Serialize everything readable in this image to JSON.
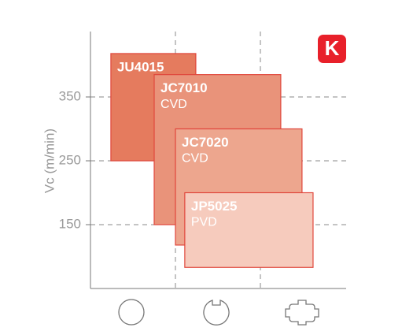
{
  "chart_data": {
    "type": "range-box",
    "ylabel": "Vc (m/min)",
    "badge": "K",
    "ylim": [
      50,
      450
    ],
    "yticks": [
      150,
      250,
      350
    ],
    "xlim": [
      0,
      3
    ],
    "xticks": [
      1,
      2
    ],
    "grid": true,
    "series": [
      {
        "name": "JU4015",
        "coating": null,
        "color": "#e57b5e",
        "x": [
          0.24,
          1.24
        ],
        "low": 250,
        "high": 418
      },
      {
        "name": "JC7010",
        "coating": "CVD",
        "color": "#e9937a",
        "x": [
          0.75,
          2.24
        ],
        "low": 150,
        "high": 385
      },
      {
        "name": "JC7020",
        "coating": "CVD",
        "color": "#eda68e",
        "x": [
          1.0,
          2.49
        ],
        "low": 118,
        "high": 300
      },
      {
        "name": "JP5025",
        "coating": "PVD",
        "color": "#f6cbbd",
        "x": [
          1.11,
          2.62
        ],
        "low": 83,
        "high": 200
      }
    ]
  }
}
